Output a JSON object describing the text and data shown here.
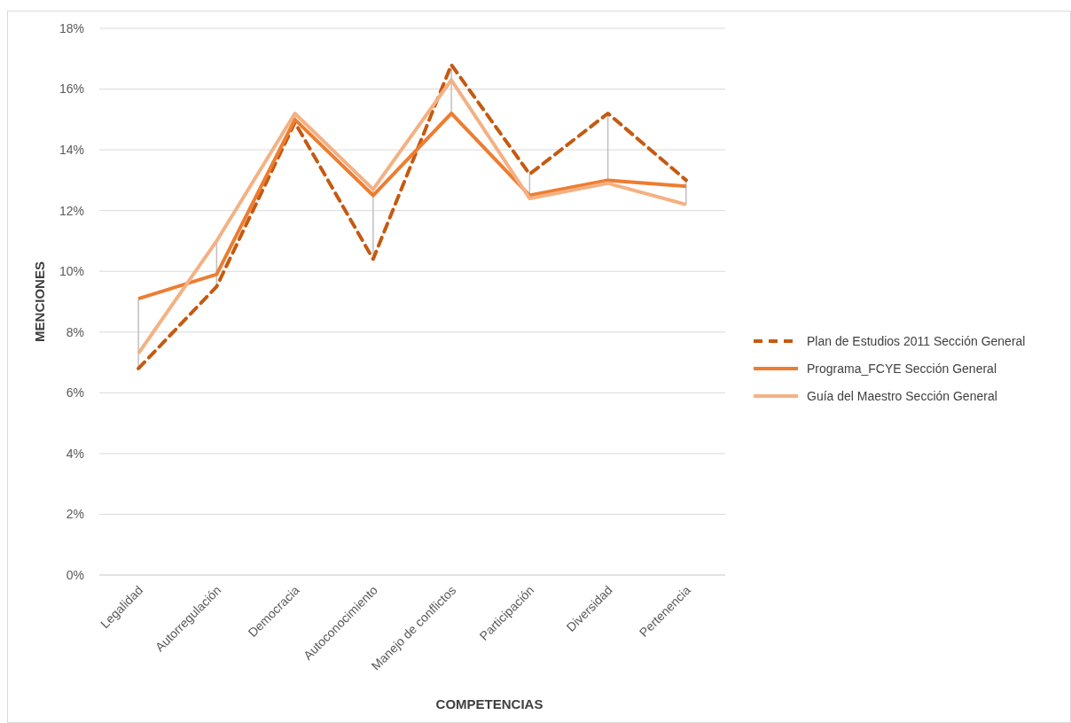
{
  "chart_data": {
    "type": "line",
    "xlabel": "COMPETENCIAS",
    "ylabel": "MENCIONES",
    "categories": [
      "Legalidad",
      "Autorregulación",
      "Democracia",
      "Autoconocimiento",
      "Manejo de conflictos",
      "Participación",
      "Diversidad",
      "Pertenencia"
    ],
    "series": [
      {
        "name": "Plan de Estudios 2011 Sección General",
        "color": "#c55a11",
        "line_style": "dashed",
        "values": [
          6.8,
          9.5,
          14.9,
          10.4,
          16.8,
          13.2,
          15.2,
          13.0
        ]
      },
      {
        "name": "Programa_FCYE Sección General",
        "color": "#ed7d31",
        "line_style": "solid",
        "values": [
          9.1,
          9.9,
          15.0,
          12.5,
          15.2,
          12.5,
          13.0,
          12.8
        ]
      },
      {
        "name": "Guía del Maestro Sección General",
        "color": "#f4b183",
        "line_style": "solid",
        "values": [
          7.3,
          11.0,
          15.2,
          12.7,
          16.3,
          12.4,
          12.9,
          12.2
        ]
      }
    ],
    "ylim": [
      0,
      18
    ],
    "yticks": [
      {
        "value": 0,
        "label": "0%"
      },
      {
        "value": 2,
        "label": "2%"
      },
      {
        "value": 4,
        "label": "4%"
      },
      {
        "value": 6,
        "label": "6%"
      },
      {
        "value": 8,
        "label": "8%"
      },
      {
        "value": 10,
        "label": "10%"
      },
      {
        "value": 12,
        "label": "12%"
      },
      {
        "value": 14,
        "label": "14%"
      },
      {
        "value": 16,
        "label": "16%"
      },
      {
        "value": 18,
        "label": "18%"
      }
    ],
    "grid": "y",
    "legend": "right",
    "marker": "none"
  }
}
